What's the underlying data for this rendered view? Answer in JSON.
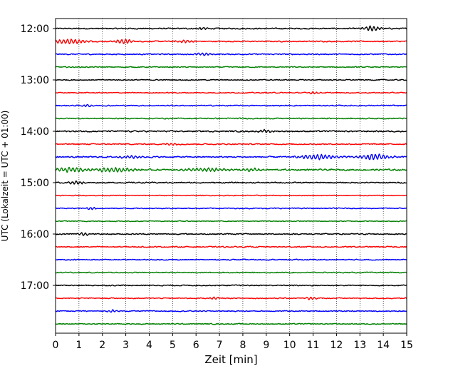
{
  "chart_data": {
    "type": "line",
    "title": "",
    "xlabel": "Zeit  [min]",
    "ylabel": "UTC (Lokalzeit = UTC + 01:00)",
    "xlim": [
      0,
      15
    ],
    "x_ticks": [
      "0",
      "1",
      "2",
      "3",
      "4",
      "5",
      "6",
      "7",
      "8",
      "9",
      "10",
      "11",
      "12",
      "13",
      "14",
      "15"
    ],
    "y_ticks": [
      "12:00",
      "13:00",
      "14:00",
      "15:00",
      "16:00",
      "17:00"
    ],
    "x_grid": "dotted vertical lines at each minute",
    "color_cycle": [
      "#000000",
      "#ff0000",
      "#0000ff",
      "#008000"
    ],
    "series": [
      {
        "start": "12:00",
        "color": "#000000",
        "amplitude": 0.22,
        "bursts": [
          {
            "x": 13.5,
            "amp": 0.55,
            "width": 0.5
          },
          {
            "x": 6.3,
            "amp": 0.3,
            "width": 0.3
          }
        ]
      },
      {
        "start": "12:15",
        "color": "#ff0000",
        "amplitude": 0.2,
        "bursts": [
          {
            "x": 0.6,
            "amp": 0.55,
            "width": 1.0
          },
          {
            "x": 2.9,
            "amp": 0.45,
            "width": 0.6
          },
          {
            "x": 5.5,
            "amp": 0.3,
            "width": 0.5
          }
        ]
      },
      {
        "start": "12:30",
        "color": "#0000ff",
        "amplitude": 0.2,
        "bursts": [
          {
            "x": 6.3,
            "amp": 0.35,
            "width": 0.4
          }
        ]
      },
      {
        "start": "12:45",
        "color": "#008000",
        "amplitude": 0.18,
        "bursts": []
      },
      {
        "start": "13:00",
        "color": "#000000",
        "amplitude": 0.18,
        "bursts": []
      },
      {
        "start": "13:15",
        "color": "#ff0000",
        "amplitude": 0.18,
        "bursts": [
          {
            "x": 11.0,
            "amp": 0.3,
            "width": 0.3
          }
        ]
      },
      {
        "start": "13:30",
        "color": "#0000ff",
        "amplitude": 0.2,
        "bursts": [
          {
            "x": 1.4,
            "amp": 0.3,
            "width": 0.3
          }
        ]
      },
      {
        "start": "13:45",
        "color": "#008000",
        "amplitude": 0.2,
        "bursts": []
      },
      {
        "start": "14:00",
        "color": "#000000",
        "amplitude": 0.25,
        "bursts": [
          {
            "x": 9.0,
            "amp": 0.35,
            "width": 0.4
          }
        ]
      },
      {
        "start": "14:15",
        "color": "#ff0000",
        "amplitude": 0.2,
        "bursts": [
          {
            "x": 5.0,
            "amp": 0.3,
            "width": 0.4
          }
        ]
      },
      {
        "start": "14:30",
        "color": "#0000ff",
        "amplitude": 0.25,
        "bursts": [
          {
            "x": 11.2,
            "amp": 0.6,
            "width": 1.0
          },
          {
            "x": 13.6,
            "amp": 0.65,
            "width": 1.0
          },
          {
            "x": 3.2,
            "amp": 0.35,
            "width": 0.6
          }
        ]
      },
      {
        "start": "14:45",
        "color": "#008000",
        "amplitude": 0.28,
        "bursts": [
          {
            "x": 0.6,
            "amp": 0.5,
            "width": 1.0
          },
          {
            "x": 2.5,
            "amp": 0.5,
            "width": 1.2
          },
          {
            "x": 6.5,
            "amp": 0.4,
            "width": 1.5
          },
          {
            "x": 8.4,
            "amp": 0.35,
            "width": 0.5
          }
        ]
      },
      {
        "start": "15:00",
        "color": "#000000",
        "amplitude": 0.22,
        "bursts": [
          {
            "x": 0.9,
            "amp": 0.35,
            "width": 0.5
          }
        ]
      },
      {
        "start": "15:15",
        "color": "#ff0000",
        "amplitude": 0.15,
        "bursts": []
      },
      {
        "start": "15:30",
        "color": "#0000ff",
        "amplitude": 0.18,
        "bursts": [
          {
            "x": 1.5,
            "amp": 0.3,
            "width": 0.3
          }
        ]
      },
      {
        "start": "15:45",
        "color": "#008000",
        "amplitude": 0.15,
        "bursts": []
      },
      {
        "start": "16:00",
        "color": "#000000",
        "amplitude": 0.2,
        "bursts": [
          {
            "x": 1.2,
            "amp": 0.3,
            "width": 0.4
          }
        ]
      },
      {
        "start": "16:15",
        "color": "#ff0000",
        "amplitude": 0.2,
        "bursts": []
      },
      {
        "start": "16:30",
        "color": "#0000ff",
        "amplitude": 0.18,
        "bursts": []
      },
      {
        "start": "16:45",
        "color": "#008000",
        "amplitude": 0.18,
        "bursts": []
      },
      {
        "start": "17:00",
        "color": "#000000",
        "amplitude": 0.2,
        "bursts": []
      },
      {
        "start": "17:15",
        "color": "#ff0000",
        "amplitude": 0.18,
        "bursts": [
          {
            "x": 10.9,
            "amp": 0.35,
            "width": 0.3
          },
          {
            "x": 6.8,
            "amp": 0.3,
            "width": 0.3
          }
        ]
      },
      {
        "start": "17:30",
        "color": "#0000ff",
        "amplitude": 0.18,
        "bursts": [
          {
            "x": 2.4,
            "amp": 0.3,
            "width": 0.3
          }
        ]
      },
      {
        "start": "17:45",
        "color": "#008000",
        "amplitude": 0.18,
        "bursts": []
      }
    ]
  }
}
